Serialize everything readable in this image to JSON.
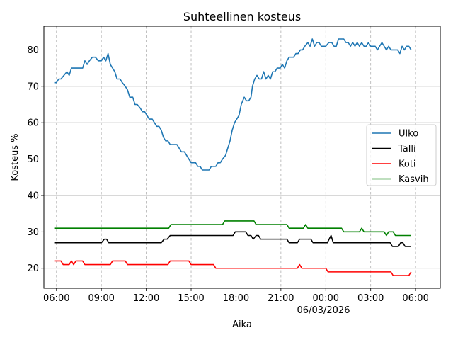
{
  "chart_data": {
    "type": "line",
    "title": "Suhteellinen kosteus",
    "xlabel": "Aika",
    "ylabel": "Kosteus %",
    "x_unit": "hours since 06:00 on 05/03/2026",
    "xlim": [
      -0.84,
      25.65
    ],
    "ylim": [
      14.5,
      86.5
    ],
    "xticks": [
      {
        "x": 0,
        "label": "06:00"
      },
      {
        "x": 3,
        "label": "09:00"
      },
      {
        "x": 6,
        "label": "12:00"
      },
      {
        "x": 9,
        "label": "15:00"
      },
      {
        "x": 12,
        "label": "18:00"
      },
      {
        "x": 15,
        "label": "21:00"
      },
      {
        "x": 18,
        "label": "00:00"
      },
      {
        "x": 21,
        "label": "03:00"
      },
      {
        "x": 24,
        "label": "06:00"
      }
    ],
    "date_label": "06/03/2026",
    "yticks": [
      20,
      30,
      40,
      50,
      60,
      70,
      80
    ],
    "grid": true,
    "legend_position": "center-right",
    "series": [
      {
        "name": "Ulko",
        "color": "#1f77b4",
        "points": [
          [
            -0.15,
            71
          ],
          [
            0,
            71
          ],
          [
            0.15,
            72
          ],
          [
            0.3,
            72
          ],
          [
            0.5,
            73
          ],
          [
            0.7,
            74
          ],
          [
            0.85,
            73
          ],
          [
            1,
            75
          ],
          [
            1.3,
            75
          ],
          [
            1.6,
            75
          ],
          [
            1.75,
            75
          ],
          [
            1.9,
            77
          ],
          [
            2.05,
            76
          ],
          [
            2.2,
            77
          ],
          [
            2.4,
            78
          ],
          [
            2.6,
            78
          ],
          [
            2.8,
            77
          ],
          [
            3,
            77
          ],
          [
            3.15,
            78
          ],
          [
            3.3,
            77
          ],
          [
            3.45,
            79
          ],
          [
            3.6,
            76
          ],
          [
            3.75,
            75
          ],
          [
            3.9,
            74
          ],
          [
            4.05,
            72
          ],
          [
            4.25,
            72
          ],
          [
            4.4,
            71
          ],
          [
            4.6,
            70
          ],
          [
            4.75,
            69
          ],
          [
            4.9,
            67
          ],
          [
            5.1,
            67
          ],
          [
            5.25,
            65
          ],
          [
            5.4,
            65
          ],
          [
            5.6,
            64
          ],
          [
            5.75,
            63
          ],
          [
            5.9,
            63
          ],
          [
            6.05,
            62
          ],
          [
            6.2,
            61
          ],
          [
            6.4,
            61
          ],
          [
            6.55,
            60
          ],
          [
            6.7,
            59
          ],
          [
            6.85,
            59
          ],
          [
            7,
            58
          ],
          [
            7.15,
            56
          ],
          [
            7.3,
            55
          ],
          [
            7.45,
            55
          ],
          [
            7.6,
            54
          ],
          [
            7.9,
            54
          ],
          [
            8.05,
            54
          ],
          [
            8.2,
            53
          ],
          [
            8.35,
            52
          ],
          [
            8.55,
            52
          ],
          [
            8.7,
            51
          ],
          [
            8.85,
            50
          ],
          [
            9,
            49
          ],
          [
            9.3,
            49
          ],
          [
            9.45,
            48
          ],
          [
            9.6,
            48
          ],
          [
            9.75,
            47
          ],
          [
            10.2,
            47
          ],
          [
            10.35,
            48
          ],
          [
            10.65,
            48
          ],
          [
            10.8,
            49
          ],
          [
            10.95,
            49
          ],
          [
            11.1,
            50
          ],
          [
            11.3,
            51
          ],
          [
            11.45,
            53
          ],
          [
            11.6,
            55
          ],
          [
            11.75,
            58
          ],
          [
            11.9,
            60
          ],
          [
            12.05,
            61
          ],
          [
            12.2,
            62
          ],
          [
            12.35,
            65
          ],
          [
            12.55,
            67
          ],
          [
            12.7,
            66
          ],
          [
            12.85,
            66
          ],
          [
            13,
            67
          ],
          [
            13.1,
            70
          ],
          [
            13.25,
            72
          ],
          [
            13.4,
            73
          ],
          [
            13.55,
            72
          ],
          [
            13.7,
            72
          ],
          [
            13.85,
            74
          ],
          [
            14,
            72
          ],
          [
            14.15,
            73
          ],
          [
            14.3,
            72
          ],
          [
            14.45,
            74
          ],
          [
            14.6,
            74
          ],
          [
            14.75,
            75
          ],
          [
            14.95,
            75
          ],
          [
            15.1,
            76
          ],
          [
            15.25,
            75
          ],
          [
            15.4,
            77
          ],
          [
            15.55,
            78
          ],
          [
            15.85,
            78
          ],
          [
            16,
            79
          ],
          [
            16.15,
            79
          ],
          [
            16.3,
            80
          ],
          [
            16.45,
            80
          ],
          [
            16.6,
            81
          ],
          [
            16.8,
            82
          ],
          [
            16.95,
            81
          ],
          [
            17.1,
            83
          ],
          [
            17.25,
            81
          ],
          [
            17.4,
            82
          ],
          [
            17.55,
            82
          ],
          [
            17.7,
            81
          ],
          [
            18,
            81
          ],
          [
            18.2,
            82
          ],
          [
            18.4,
            82
          ],
          [
            18.55,
            81
          ],
          [
            18.7,
            81
          ],
          [
            18.85,
            83
          ],
          [
            19.2,
            83
          ],
          [
            19.35,
            82
          ],
          [
            19.5,
            82
          ],
          [
            19.65,
            81
          ],
          [
            19.8,
            82
          ],
          [
            19.95,
            81
          ],
          [
            20.1,
            82
          ],
          [
            20.25,
            81
          ],
          [
            20.4,
            82
          ],
          [
            20.55,
            81
          ],
          [
            20.7,
            81
          ],
          [
            20.85,
            82
          ],
          [
            21,
            81
          ],
          [
            21.3,
            81
          ],
          [
            21.45,
            80
          ],
          [
            21.6,
            81
          ],
          [
            21.75,
            82
          ],
          [
            21.9,
            81
          ],
          [
            22.05,
            80
          ],
          [
            22.2,
            81
          ],
          [
            22.35,
            80
          ],
          [
            22.8,
            80
          ],
          [
            22.95,
            79
          ],
          [
            23.1,
            81
          ],
          [
            23.25,
            80
          ],
          [
            23.4,
            81
          ],
          [
            23.55,
            81
          ],
          [
            23.7,
            80
          ]
        ]
      },
      {
        "name": "Talli",
        "color": "#000000",
        "points": [
          [
            -0.15,
            27
          ],
          [
            3,
            27
          ],
          [
            3.2,
            28
          ],
          [
            3.35,
            28
          ],
          [
            3.5,
            27
          ],
          [
            7,
            27
          ],
          [
            7.2,
            28
          ],
          [
            7.4,
            28
          ],
          [
            7.6,
            29
          ],
          [
            11.8,
            29
          ],
          [
            11.95,
            30
          ],
          [
            12.65,
            30
          ],
          [
            12.8,
            29
          ],
          [
            13,
            29
          ],
          [
            13.15,
            28
          ],
          [
            13.35,
            29
          ],
          [
            13.5,
            29
          ],
          [
            13.65,
            28
          ],
          [
            15.4,
            28
          ],
          [
            15.55,
            27
          ],
          [
            16.1,
            27
          ],
          [
            16.25,
            28
          ],
          [
            17,
            28
          ],
          [
            17.15,
            27
          ],
          [
            18.1,
            27
          ],
          [
            18.35,
            29
          ],
          [
            18.5,
            27
          ],
          [
            22.3,
            27
          ],
          [
            22.45,
            26
          ],
          [
            22.85,
            26
          ],
          [
            23,
            27
          ],
          [
            23.15,
            27
          ],
          [
            23.3,
            26
          ],
          [
            23.7,
            26
          ]
        ]
      },
      {
        "name": "Koti",
        "color": "#ff0000",
        "points": [
          [
            -0.15,
            22
          ],
          [
            0.3,
            22
          ],
          [
            0.45,
            21
          ],
          [
            0.85,
            21
          ],
          [
            1,
            22
          ],
          [
            1.15,
            21
          ],
          [
            1.3,
            22
          ],
          [
            1.75,
            22
          ],
          [
            1.9,
            21
          ],
          [
            3.6,
            21
          ],
          [
            3.75,
            22
          ],
          [
            4.6,
            22
          ],
          [
            4.75,
            21
          ],
          [
            7.45,
            21
          ],
          [
            7.6,
            22
          ],
          [
            8.85,
            22
          ],
          [
            9,
            21
          ],
          [
            10.5,
            21
          ],
          [
            10.65,
            20
          ],
          [
            16.1,
            20
          ],
          [
            16.25,
            21
          ],
          [
            16.4,
            20
          ],
          [
            18,
            20
          ],
          [
            18.15,
            19
          ],
          [
            22.35,
            19
          ],
          [
            22.5,
            18
          ],
          [
            23.55,
            18
          ],
          [
            23.7,
            19
          ]
        ]
      },
      {
        "name": "Kasvih",
        "color": "#008000",
        "points": [
          [
            -0.15,
            31
          ],
          [
            7.5,
            31
          ],
          [
            7.65,
            32
          ],
          [
            11.1,
            32
          ],
          [
            11.25,
            33
          ],
          [
            13.2,
            33
          ],
          [
            13.35,
            32
          ],
          [
            15.4,
            32
          ],
          [
            15.55,
            31
          ],
          [
            16.5,
            31
          ],
          [
            16.65,
            32
          ],
          [
            16.8,
            31
          ],
          [
            19.05,
            31
          ],
          [
            19.2,
            30
          ],
          [
            20.25,
            30
          ],
          [
            20.4,
            31
          ],
          [
            20.55,
            30
          ],
          [
            21.9,
            30
          ],
          [
            22.05,
            29
          ],
          [
            22.2,
            30
          ],
          [
            22.5,
            30
          ],
          [
            22.65,
            29
          ],
          [
            23.7,
            29
          ]
        ]
      }
    ]
  }
}
